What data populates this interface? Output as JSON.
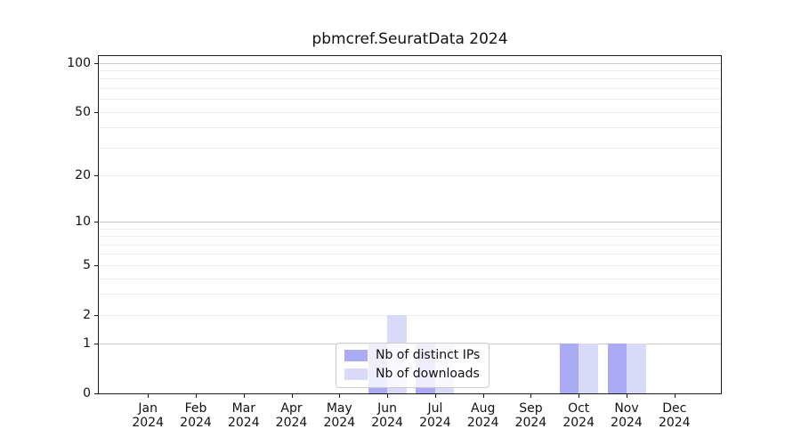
{
  "chart_data": {
    "type": "bar",
    "title": "pbmcref.SeuratData 2024",
    "x": {
      "months": [
        "Jan",
        "Feb",
        "Mar",
        "Apr",
        "May",
        "Jun",
        "Jul",
        "Aug",
        "Sep",
        "Oct",
        "Nov",
        "Dec"
      ],
      "year": "2024"
    },
    "series": [
      {
        "name": "Nb of distinct IPs",
        "key": "distinct-ips",
        "color": "#aaaaf5",
        "values": [
          0,
          0,
          0,
          0,
          0,
          1,
          1,
          0,
          0,
          1,
          1,
          0
        ]
      },
      {
        "name": "Nb of downloads",
        "key": "downloads",
        "color": "#d9d9f8",
        "values": [
          0,
          0,
          0,
          0,
          0,
          2,
          1,
          0,
          0,
          1,
          1,
          0
        ]
      }
    ],
    "y_axis": {
      "scale": "log1p",
      "tick_labels": [
        "0",
        "1",
        "2",
        "5",
        "10",
        "20",
        "50",
        "100"
      ],
      "tick_values": [
        0,
        1,
        2,
        5,
        10,
        20,
        50,
        100
      ],
      "grid_major_values": [
        1,
        10,
        100
      ],
      "grid_minor_values": [
        2,
        3,
        4,
        5,
        6,
        7,
        8,
        9,
        20,
        30,
        40,
        50,
        60,
        70,
        80,
        90
      ],
      "max": 110
    },
    "legend": {
      "position": "lower center"
    },
    "grid": "both",
    "colors": {
      "grid_major": "#c9c9c9",
      "grid_minor": "#ededed",
      "spine": "#1a1a1a",
      "background": "#ffffff"
    }
  }
}
